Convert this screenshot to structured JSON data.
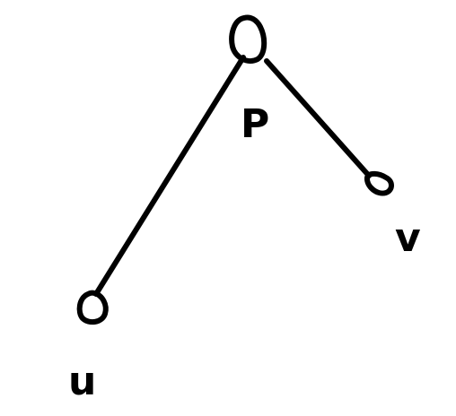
{
  "diagram": {
    "type": "tree",
    "style": "hand-drawn",
    "stroke_color": "#000000",
    "background": "#ffffff",
    "nodes": [
      {
        "id": "p",
        "label": "P"
      },
      {
        "id": "u",
        "label": "u"
      },
      {
        "id": "v",
        "label": "v"
      }
    ],
    "edges": [
      {
        "from": "p",
        "to": "u"
      },
      {
        "from": "p",
        "to": "v"
      }
    ]
  }
}
